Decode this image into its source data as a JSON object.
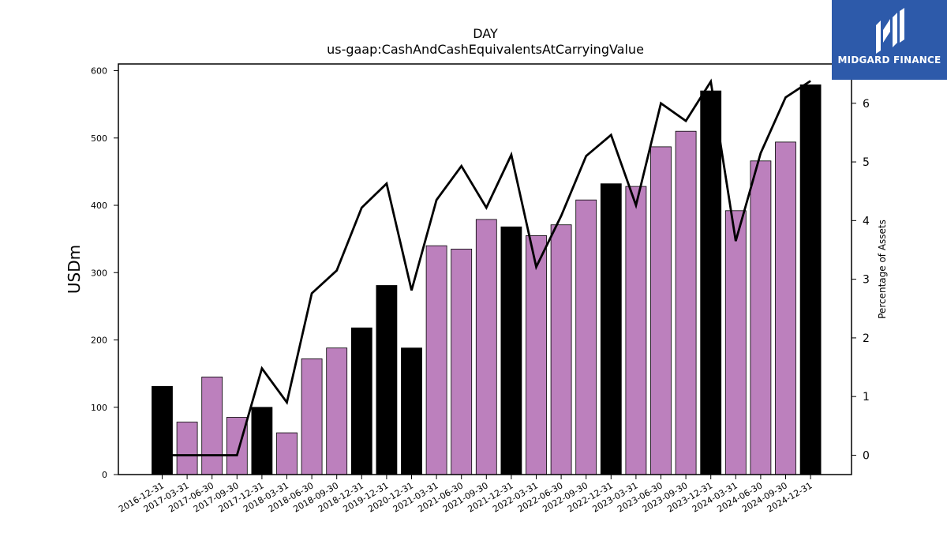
{
  "brand": {
    "name": "MIDGARD FINANCE",
    "color": "#2d5aaa"
  },
  "chart_data": {
    "type": "bar",
    "title": "DAY",
    "subtitle": "us-gaap:CashAndCashEquivalentsAtCarryingValue",
    "ylabel": "USDm",
    "y2label": "Percentage of Assets",
    "ylim": [
      0,
      610
    ],
    "y2lim": [
      -0.33,
      6.67
    ],
    "yticks": [
      0,
      100,
      200,
      300,
      400,
      500,
      600
    ],
    "y2ticks": [
      0,
      1,
      2,
      3,
      4,
      5,
      6
    ],
    "grid": false,
    "categories": [
      "2016-12-31",
      "2017-03-31",
      "2017-06-30",
      "2017-09-30",
      "2017-12-31",
      "2018-03-31",
      "2018-06-30",
      "2018-09-30",
      "2018-12-31",
      "2019-12-31",
      "2020-12-31",
      "2021-03-31",
      "2021-06-30",
      "2021-09-30",
      "2021-12-31",
      "2022-03-31",
      "2022-06-30",
      "2022-09-30",
      "2022-12-31",
      "2023-03-31",
      "2023-06-30",
      "2023-09-30",
      "2023-12-31",
      "2024-03-31",
      "2024-06-30",
      "2024-09-30",
      "2024-12-31"
    ],
    "series": [
      {
        "type": "bar",
        "values": [
          131,
          78,
          145,
          85,
          100,
          62,
          172,
          188,
          218,
          281,
          188,
          340,
          335,
          379,
          368,
          355,
          371,
          408,
          432,
          428,
          487,
          510,
          570,
          392,
          466,
          494,
          579
        ],
        "colors": [
          "#000000",
          "#bc80bd",
          "#bc80bd",
          "#bc80bd",
          "#000000",
          "#bc80bd",
          "#bc80bd",
          "#bc80bd",
          "#000000",
          "#000000",
          "#000000",
          "#bc80bd",
          "#bc80bd",
          "#bc80bd",
          "#000000",
          "#bc80bd",
          "#bc80bd",
          "#bc80bd",
          "#000000",
          "#bc80bd",
          "#bc80bd",
          "#bc80bd",
          "#000000",
          "#bc80bd",
          "#bc80bd",
          "#bc80bd",
          "#000000"
        ]
      },
      {
        "type": "line",
        "axis": "right",
        "color": "#000000",
        "values": [
          0.0,
          0.0,
          0.0,
          0.0,
          1.48,
          0.9,
          2.76,
          3.15,
          4.22,
          4.63,
          2.81,
          4.35,
          4.93,
          4.22,
          5.12,
          3.21,
          4.08,
          5.1,
          5.46,
          4.26,
          6.0,
          5.7,
          6.37,
          3.65,
          5.15,
          6.1,
          6.38
        ]
      }
    ]
  }
}
